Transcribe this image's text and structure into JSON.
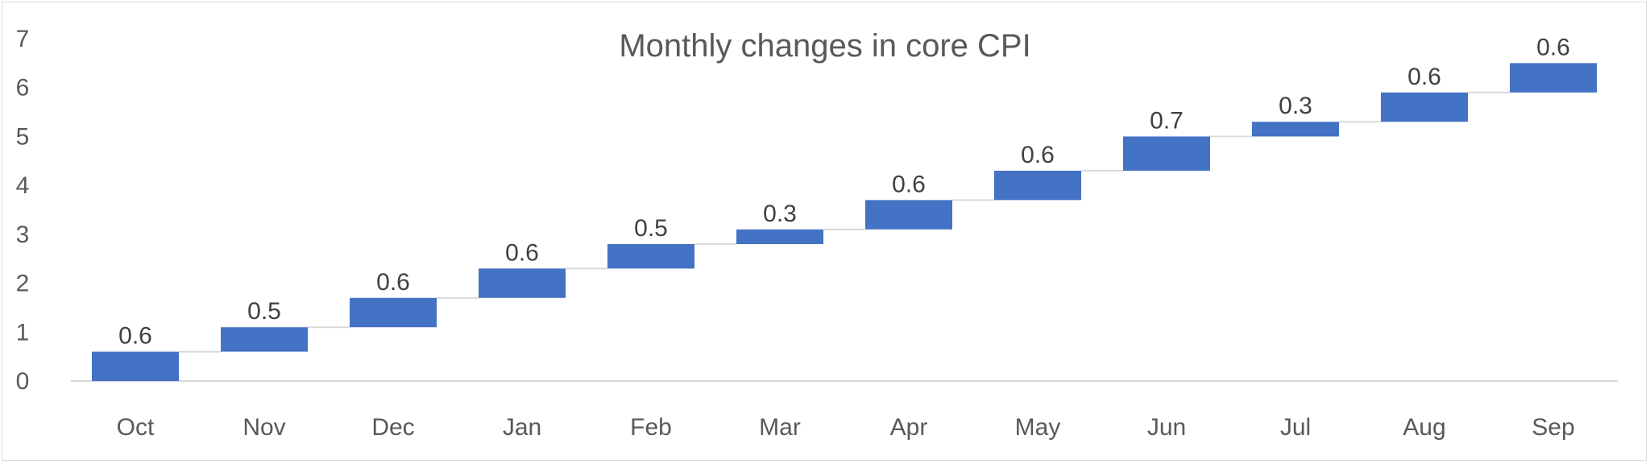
{
  "chart_data": {
    "type": "waterfall",
    "title": "Monthly changes in core CPI",
    "xlabel": "",
    "ylabel": "",
    "categories": [
      "Oct",
      "Nov",
      "Dec",
      "Jan",
      "Feb",
      "Mar",
      "Apr",
      "May",
      "Jun",
      "Jul",
      "Aug",
      "Sep"
    ],
    "values": [
      0.6,
      0.5,
      0.6,
      0.6,
      0.5,
      0.3,
      0.6,
      0.6,
      0.7,
      0.3,
      0.6,
      0.6
    ],
    "data_labels": [
      "0.6",
      "0.5",
      "0.6",
      "0.6",
      "0.5",
      "0.3",
      "0.6",
      "0.6",
      "0.7",
      "0.3",
      "0.6",
      "0.6"
    ],
    "ylim": [
      0,
      7
    ],
    "y_ticks": [
      "0",
      "1",
      "2",
      "3",
      "4",
      "5",
      "6",
      "7"
    ],
    "grid": false,
    "legend": "none",
    "colors": {
      "bar": "#4472C4",
      "connector": "#d9d9d9",
      "axis": "#d9d9d9",
      "text": "#595959"
    }
  }
}
